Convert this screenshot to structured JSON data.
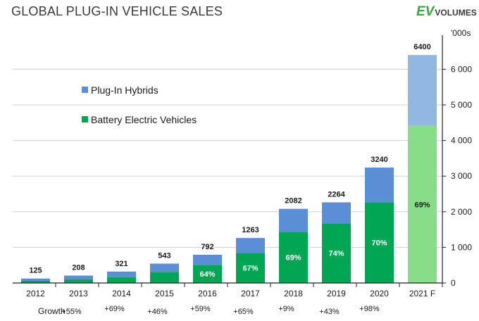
{
  "header": {
    "title": "GLOBAL PLUG-IN VEHICLE SALES"
  },
  "logo": {
    "ev": "EV",
    "volumes": "VOLUMES"
  },
  "colors": {
    "phev": "#5b8fd5",
    "bev": "#00a651",
    "phev_forecast": "#93b7e3",
    "bev_forecast": "#88de88",
    "grid": "#d0d0d0",
    "axis": "#222222",
    "text": "#1a1a1a"
  },
  "chart_data": {
    "type": "bar",
    "stacked": true,
    "title": "GLOBAL PLUG-IN VEHICLE SALES",
    "unit_label": "'000s",
    "categories": [
      "2012",
      "2013",
      "2014",
      "2015",
      "2016",
      "2017",
      "2018",
      "2019",
      "2020",
      "2021 F"
    ],
    "forecast_categories": [
      "2021 F"
    ],
    "totals": [
      125,
      208,
      321,
      543,
      792,
      1263,
      2082,
      2264,
      3240,
      6400
    ],
    "series": [
      {
        "name": "Battery Electric Vehicles",
        "values": [
          60,
          100,
          160,
          310,
          507,
          846,
          1437,
          1675,
          2268,
          4416
        ]
      },
      {
        "name": "Plug-In Hybrids",
        "values": [
          65,
          108,
          161,
          233,
          285,
          417,
          645,
          589,
          972,
          1984
        ]
      }
    ],
    "bev_share_labels": [
      "",
      "",
      "",
      "",
      "64%",
      "67%",
      "69%",
      "74%",
      "70%",
      "69%"
    ],
    "growth_label": "Growth",
    "growth": [
      "+55%",
      "+69%",
      "+46%",
      "+59%",
      "+65%",
      "+9%",
      "+43%",
      "+98%"
    ],
    "legend_position": "upper-left",
    "y_axis_position": "right",
    "ylim": [
      0,
      7000
    ],
    "yticks": [
      0,
      1000,
      2000,
      3000,
      4000,
      5000,
      6000
    ],
    "ytick_labels": [
      "0",
      "1 000",
      "2 000",
      "3 000",
      "4 000",
      "5 000",
      "6 000"
    ],
    "grid": true
  }
}
